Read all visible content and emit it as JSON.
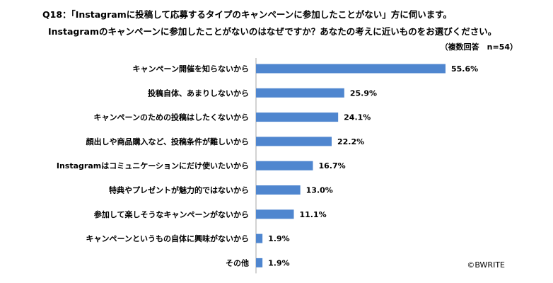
{
  "header": {
    "question": "Q18：「Instagramに投稿して応募するタイプのキャンペーンに参加したことがない」方に伺います。",
    "subquestion": "Instagramのキャンペーンに参加したことがないのはなぜですか？あなたの考えに近いものをお選びください。",
    "note": "（複数回答　n=54）"
  },
  "footer": {
    "credit": "©BWRITE"
  },
  "chart_data": {
    "type": "bar",
    "orientation": "horizontal",
    "categories": [
      "キャンペーン開催を知らないから",
      "投稿自体、あまりしないから",
      "キャンペーンのための投稿はしたくないから",
      "顔出しや商品購入など、投稿条件が難しいから",
      "Instagramはコミュニケーションにだけ使いたいから",
      "特典やプレゼントが魅力的ではないから",
      "参加して楽しそうなキャンペーンがないから",
      "キャンペーンというもの自体に興味がないから",
      "その他"
    ],
    "values": [
      55.6,
      25.9,
      24.1,
      22.2,
      16.7,
      13.0,
      11.1,
      1.9,
      1.9
    ],
    "value_labels": [
      "55.6%",
      "25.9%",
      "24.1%",
      "22.2%",
      "16.7%",
      "13.0%",
      "11.1%",
      "1.9%",
      "1.9%"
    ],
    "bar_color": "#4f86cf",
    "xlim": [
      0,
      100
    ],
    "grid": false
  }
}
